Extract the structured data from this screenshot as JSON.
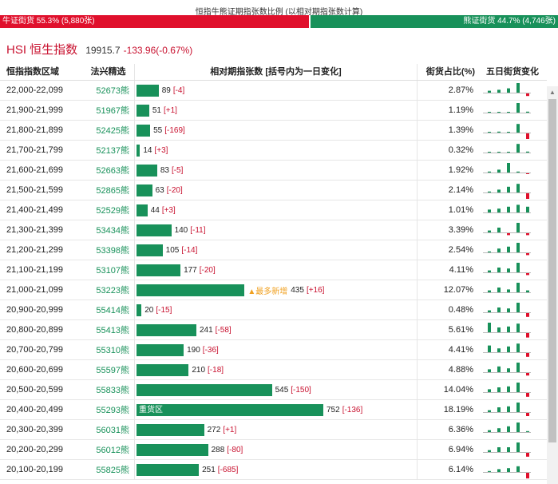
{
  "header": {
    "title": "恒指牛熊证期指张数比例 (以相对期指张数计算)",
    "bull": {
      "label": "牛证街货 55.3% (5,880张)",
      "share": 0.553
    },
    "bear": {
      "label": "熊证街货 44.7% (4,746张)",
      "share": 0.447
    }
  },
  "index": {
    "name": "HSI 恒生指数",
    "price": "19915.7",
    "change": "-133.96(-0.67%)"
  },
  "columns": {
    "range": "恒指指数区域",
    "code": "法兴精选",
    "contracts": "相对期指张数 [括号内为一日变化]",
    "share": "街货占比(%)",
    "trend": "五日街货变化"
  },
  "colors": {
    "green": "#18915a",
    "red": "#e0102c",
    "accent": "#c8102e",
    "tag": "#f0a020"
  },
  "max_count": 752,
  "rows": [
    {
      "range": "22,000-22,099",
      "code": "52673熊",
      "count": 89,
      "count_label": "89",
      "change": "[-4]",
      "share": "2.87%",
      "trend": [
        0.2,
        0.3,
        0.45,
        1.0,
        -0.4
      ]
    },
    {
      "range": "21,900-21,999",
      "code": "51967熊",
      "count": 51,
      "count_label": "51",
      "change": "[+1]",
      "share": "1.19%",
      "trend": [
        0,
        0,
        0,
        1.0,
        0.1
      ]
    },
    {
      "range": "21,800-21,899",
      "code": "52425熊",
      "count": 55,
      "count_label": "55",
      "change": "[-169]",
      "share": "1.39%",
      "trend": [
        0,
        0.1,
        0,
        0.9,
        -1.0
      ]
    },
    {
      "range": "21,700-21,799",
      "code": "52137熊",
      "count": 14,
      "count_label": "14",
      "change": "[+3]",
      "share": "0.32%",
      "trend": [
        0,
        0,
        0,
        0.9,
        0.1
      ]
    },
    {
      "range": "21,600-21,699",
      "code": "52663熊",
      "count": 83,
      "count_label": "83",
      "change": "[-5]",
      "share": "1.92%",
      "trend": [
        0.1,
        0.3,
        1.0,
        0.1,
        -0.1
      ]
    },
    {
      "range": "21,500-21,599",
      "code": "52865熊",
      "count": 63,
      "count_label": "63",
      "change": "[-20]",
      "share": "2.14%",
      "trend": [
        0.1,
        0.3,
        0.6,
        0.9,
        -1.0
      ]
    },
    {
      "range": "21,400-21,499",
      "code": "52529熊",
      "count": 44,
      "count_label": "44",
      "change": "[+3]",
      "share": "1.01%",
      "trend": [
        0.3,
        0.4,
        0.6,
        0.8,
        0.6
      ]
    },
    {
      "range": "21,300-21,399",
      "code": "53434熊",
      "count": 140,
      "count_label": "140",
      "change": "[-11]",
      "share": "3.39%",
      "trend": [
        0.2,
        0.5,
        -0.3,
        1.0,
        -0.3
      ]
    },
    {
      "range": "21,200-21,299",
      "code": "53398熊",
      "count": 105,
      "count_label": "105",
      "change": "[-14]",
      "share": "2.54%",
      "trend": [
        0.1,
        0.4,
        0.6,
        1.0,
        -0.3
      ]
    },
    {
      "range": "21,100-21,199",
      "code": "53107熊",
      "count": 177,
      "count_label": "177",
      "change": "[-20]",
      "share": "4.11%",
      "trend": [
        0.2,
        0.5,
        0.4,
        1.0,
        -0.3
      ]
    },
    {
      "range": "21,000-21,099",
      "code": "53223熊",
      "count": 435,
      "count_label": "435",
      "change": "[+16]",
      "tag": "▲最多新增",
      "share": "12.07%",
      "trend": [
        0.2,
        0.5,
        0.3,
        1.0,
        0.2
      ]
    },
    {
      "range": "20,900-20,999",
      "code": "55414熊",
      "count": 20,
      "count_label": "20",
      "change": "[-15]",
      "share": "0.48%",
      "trend": [
        0.2,
        0.5,
        0.4,
        1.0,
        -0.6
      ]
    },
    {
      "range": "20,800-20,899",
      "code": "55413熊",
      "count": 241,
      "count_label": "241",
      "change": "[-58]",
      "share": "5.61%",
      "trend": [
        1.0,
        0.5,
        0.6,
        0.9,
        -0.7
      ]
    },
    {
      "range": "20,700-20,799",
      "code": "55310熊",
      "count": 190,
      "count_label": "190",
      "change": "[-36]",
      "share": "4.41%",
      "trend": [
        0.7,
        0.4,
        0.6,
        0.9,
        -0.6
      ]
    },
    {
      "range": "20,600-20,699",
      "code": "55597熊",
      "count": 210,
      "count_label": "210",
      "change": "[-18]",
      "share": "4.88%",
      "trend": [
        0.3,
        0.6,
        0.4,
        1.0,
        -0.4
      ]
    },
    {
      "range": "20,500-20,599",
      "code": "55833熊",
      "count": 545,
      "count_label": "545",
      "change": "[-150]",
      "share": "14.04%",
      "trend": [
        0.3,
        0.5,
        0.6,
        1.0,
        -0.6
      ]
    },
    {
      "range": "20,400-20,499",
      "code": "55293熊",
      "count": 752,
      "count_label": "752",
      "change": "[-136]",
      "bar_label": "重货区",
      "share": "18.19%",
      "trend": [
        0.2,
        0.5,
        0.6,
        1.0,
        -0.5
      ]
    },
    {
      "range": "20,300-20,399",
      "code": "56031熊",
      "count": 272,
      "count_label": "272",
      "change": "[+1]",
      "share": "6.36%",
      "trend": [
        0.2,
        0.4,
        0.6,
        1.0,
        0.1
      ]
    },
    {
      "range": "20,200-20,299",
      "code": "56012熊",
      "count": 288,
      "count_label": "288",
      "change": "[-80]",
      "share": "6.94%",
      "trend": [
        0.2,
        0.5,
        0.5,
        1.0,
        -0.6
      ]
    },
    {
      "range": "20,100-20,199",
      "code": "55825熊",
      "count": 251,
      "count_label": "251",
      "change": "[-685]",
      "share": "6.14%",
      "trend": [
        0.1,
        0.3,
        0.4,
        0.6,
        -1.0
      ]
    }
  ]
}
